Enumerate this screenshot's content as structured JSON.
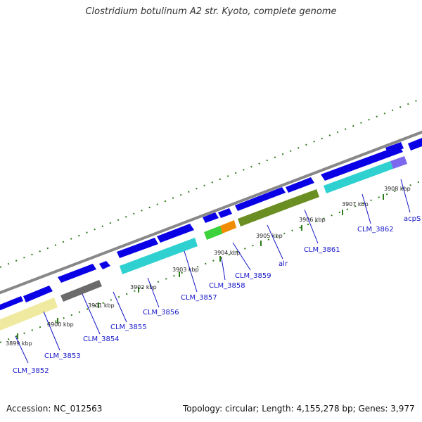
{
  "title": "Clostridium botulinum A2 str. Kyoto, complete genome",
  "footer": {
    "accession": "Accession: NC_012563",
    "summary": "Topology: circular; Length: 4,155,278 bp; Genes: 3,977"
  },
  "ticks": [
    "3899 kbp",
    "3900 kbp",
    "3901 kbp",
    "3902 kbp",
    "3903 kbp",
    "3904 kbp",
    "3905 kbp",
    "3906 kbp",
    "3907 kbp",
    "3908 kbp"
  ],
  "genes": [
    "CLM_3852",
    "CLM_3853",
    "CLM_3854",
    "CLM_3855",
    "CLM_3856",
    "CLM_3857",
    "CLM_3858",
    "CLM_3859",
    "alr",
    "CLM_3861",
    "CLM_3862",
    "acpS"
  ],
  "colors": {
    "cds": "#0a00e6",
    "backbone": "#888888",
    "tick": "#2e7d1a",
    "label": "#1515c8",
    "pale_yellow": "#f0eaa0",
    "gray": "#6b6b6b",
    "cyan": "#2ed0d0",
    "green": "#3bd23b",
    "orange": "#f08c00",
    "olive": "#6b8e23",
    "lavender": "#7b68ee"
  }
}
